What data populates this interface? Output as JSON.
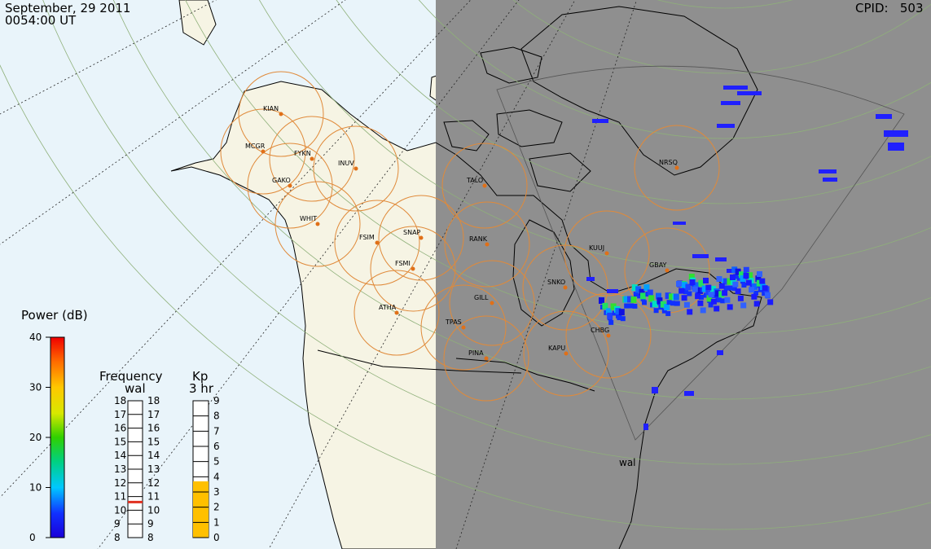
{
  "header": {
    "date": "September, 29 2011",
    "time": "0054:00 UT",
    "cpid_label": "CPID:",
    "cpid_value": "503"
  },
  "colors": {
    "ocean": "#e9f4fa",
    "land": "#f6f4e4",
    "night": "#8f8f8f",
    "coast": "#000000",
    "station": "#e07018",
    "fov_ring": "#e08a3a",
    "grid": "#8fb07a",
    "kp_fill": "#ffc000",
    "freq_marker": "#e03020"
  },
  "radar_label": "wal",
  "stations": [
    {
      "code": "KIAN"
    },
    {
      "code": "MCGR"
    },
    {
      "code": "FYKN"
    },
    {
      "code": "INUV"
    },
    {
      "code": "GAKO"
    },
    {
      "code": "WHIT"
    },
    {
      "code": "FSIM"
    },
    {
      "code": "SNAP"
    },
    {
      "code": "FSMI"
    },
    {
      "code": "ATHA"
    },
    {
      "code": "TALO"
    },
    {
      "code": "RANK"
    },
    {
      "code": "GILL"
    },
    {
      "code": "TPAS"
    },
    {
      "code": "PINA"
    },
    {
      "code": "SNKO"
    },
    {
      "code": "KAPU"
    },
    {
      "code": "CHBG"
    },
    {
      "code": "KUUJ"
    },
    {
      "code": "GBAY"
    },
    {
      "code": "NRSQ"
    }
  ],
  "power_scale": {
    "title": "Power (dB)",
    "min": 0,
    "max": 40,
    "ticks": [
      "0",
      "10",
      "20",
      "30",
      "40"
    ]
  },
  "frequency_scale": {
    "title": "Frequency",
    "subtitle": "wal",
    "min": 8,
    "max": 18,
    "ticks": [
      "8",
      "9",
      "10",
      "11",
      "12",
      "13",
      "14",
      "15",
      "16",
      "17",
      "18"
    ],
    "current": 10.6
  },
  "kp_scale": {
    "title": "Kp",
    "subtitle": "3 hr",
    "min": 0,
    "max": 9,
    "ticks": [
      "0",
      "1",
      "2",
      "3",
      "4",
      "5",
      "6",
      "7",
      "8",
      "9"
    ],
    "value": 3.7
  }
}
